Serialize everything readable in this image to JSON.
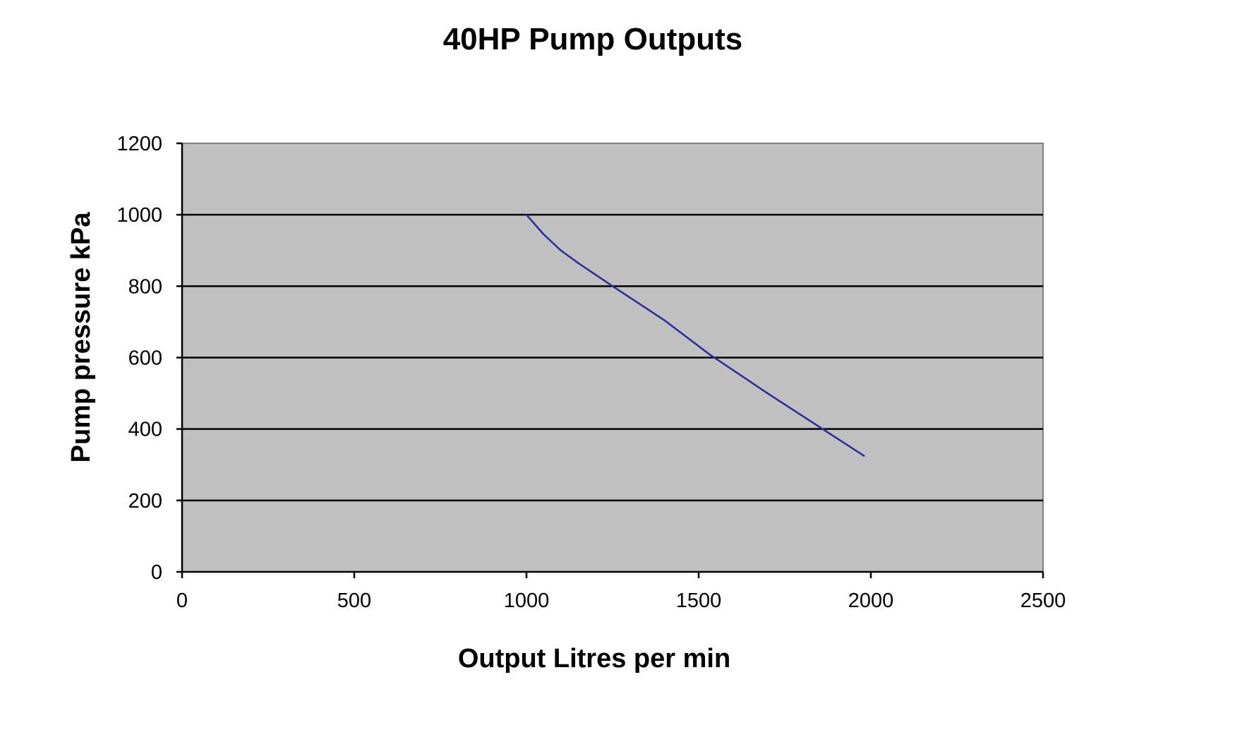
{
  "chart_data": {
    "type": "line",
    "title": "40HP Pump Outputs",
    "xlabel": "Output Litres per min",
    "ylabel": "Pump pressure kPa",
    "xlim": [
      0,
      2500
    ],
    "ylim": [
      0,
      1200
    ],
    "x_ticks": [
      "0",
      "500",
      "1000",
      "1500",
      "2000",
      "2500"
    ],
    "y_ticks": [
      "0",
      "200",
      "400",
      "600",
      "800",
      "1000",
      "1200"
    ],
    "gridlines": "horizontal major",
    "legend": "none",
    "plot_area_color": "#c0c0c0",
    "series": [
      {
        "color": "#2b2b9a",
        "x": [
          1000,
          1050,
          1100,
          1150,
          1250,
          1400,
          1530,
          1700,
          1860,
          1980
        ],
        "y": [
          1000,
          945,
          900,
          865,
          800,
          705,
          610,
          500,
          400,
          325
        ]
      }
    ]
  }
}
